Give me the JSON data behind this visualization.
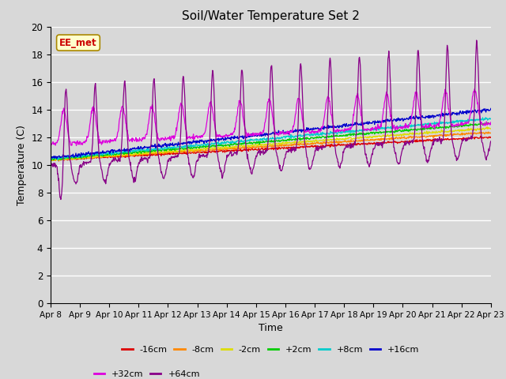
{
  "title": "Soil/Water Temperature Set 2",
  "xlabel": "Time",
  "ylabel": "Temperature (C)",
  "ylim": [
    0,
    20
  ],
  "yticks": [
    0,
    2,
    4,
    6,
    8,
    10,
    12,
    14,
    16,
    18,
    20
  ],
  "x_labels": [
    "Apr 8",
    "Apr 9",
    "Apr 10",
    "Apr 11",
    "Apr 12",
    "Apr 13",
    "Apr 14",
    "Apr 15",
    "Apr 16",
    "Apr 17",
    "Apr 18",
    "Apr 19",
    "Apr 20",
    "Apr 21",
    "Apr 22",
    "Apr 23"
  ],
  "background_color": "#d8d8d8",
  "plot_bg_color": "#d8d8d8",
  "annotation_text": "EE_met",
  "annotation_bg": "#ffffcc",
  "annotation_border": "#cc0000",
  "series": [
    {
      "label": "-16cm",
      "color": "#dd0000"
    },
    {
      "label": "-8cm",
      "color": "#ff8800"
    },
    {
      "label": "-2cm",
      "color": "#dddd00"
    },
    {
      "label": "+2cm",
      "color": "#00cc00"
    },
    {
      "label": "+8cm",
      "color": "#00cccc"
    },
    {
      "label": "+16cm",
      "color": "#0000cc"
    },
    {
      "label": "+32cm",
      "color": "#dd00dd"
    },
    {
      "label": "+64cm",
      "color": "#880088"
    }
  ]
}
